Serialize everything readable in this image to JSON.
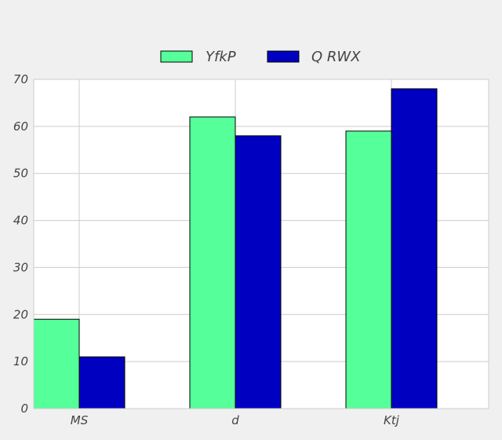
{
  "chart_data": {
    "type": "bar",
    "categories": [
      "MS",
      "d",
      "Ktj"
    ],
    "series": [
      {
        "name": "YfkP",
        "values": [
          19,
          62,
          59
        ],
        "color": "#55ff99"
      },
      {
        "name": "Q RWX",
        "values": [
          11,
          58,
          68
        ],
        "color": "#0000c0"
      }
    ],
    "ylim": [
      0,
      70
    ],
    "yticks": [
      0,
      10,
      20,
      30,
      40,
      50,
      60,
      70
    ],
    "grid": true,
    "legend_position": "top-center",
    "title": "",
    "xlabel": "",
    "ylabel": ""
  }
}
